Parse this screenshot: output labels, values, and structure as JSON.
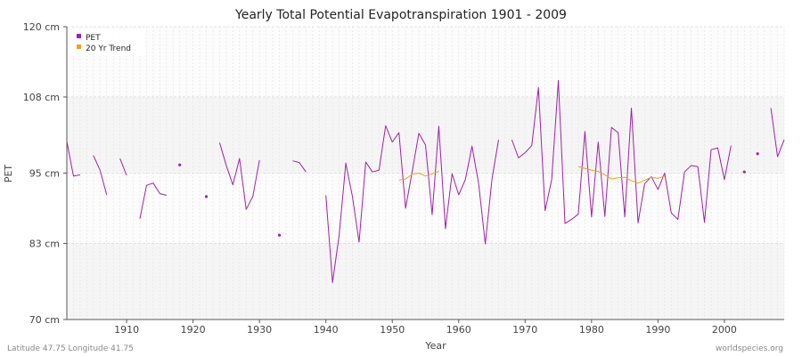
{
  "chart_data": {
    "type": "line",
    "title": "Yearly Total Potential Evapotranspiration 1901 - 2009",
    "xlabel": "Year",
    "ylabel": "PET",
    "xlim": [
      1901,
      2009
    ],
    "ylim": [
      70,
      120
    ],
    "yticks": [
      {
        "value": 70,
        "label": "70 cm"
      },
      {
        "value": 83,
        "label": "83 cm"
      },
      {
        "value": 95,
        "label": "95 cm"
      },
      {
        "value": 108,
        "label": "108 cm"
      },
      {
        "value": 120,
        "label": "120 cm"
      }
    ],
    "xticks": [
      {
        "value": 1910,
        "label": "1910"
      },
      {
        "value": 1920,
        "label": "1920"
      },
      {
        "value": 1930,
        "label": "1930"
      },
      {
        "value": 1940,
        "label": "1940"
      },
      {
        "value": 1950,
        "label": "1950"
      },
      {
        "value": 1960,
        "label": "1960"
      },
      {
        "value": 1970,
        "label": "1970"
      },
      {
        "value": 1980,
        "label": "1980"
      },
      {
        "value": 1990,
        "label": "1990"
      },
      {
        "value": 2000,
        "label": "2000"
      }
    ],
    "legend_position": "top-left",
    "series": [
      {
        "name": "PET",
        "color": "#a020a8",
        "points": [
          [
            1901,
            100.4
          ],
          [
            1902,
            94.5
          ],
          [
            1903,
            94.7
          ],
          [
            1905,
            98.0
          ],
          [
            1906,
            95.5
          ],
          [
            1907,
            91.3
          ],
          [
            1909,
            97.5
          ],
          [
            1910,
            94.6
          ],
          [
            1912,
            87.2
          ],
          [
            1913,
            92.9
          ],
          [
            1914,
            93.3
          ],
          [
            1915,
            91.5
          ],
          [
            1916,
            91.2
          ],
          [
            1918,
            96.4
          ],
          [
            1922,
            91.0
          ],
          [
            1924,
            100.2
          ],
          [
            1925,
            96.3
          ],
          [
            1926,
            93.0
          ],
          [
            1927,
            97.5
          ],
          [
            1928,
            88.8
          ],
          [
            1929,
            91.0
          ],
          [
            1930,
            97.2
          ],
          [
            1933,
            84.4
          ],
          [
            1935,
            97.1
          ],
          [
            1936,
            96.8
          ],
          [
            1937,
            95.2
          ],
          [
            1940,
            91.2
          ],
          [
            1941,
            76.3
          ],
          [
            1942,
            84.4
          ],
          [
            1943,
            96.7
          ],
          [
            1944,
            91.0
          ],
          [
            1945,
            83.2
          ],
          [
            1946,
            96.9
          ],
          [
            1947,
            95.2
          ],
          [
            1948,
            95.5
          ],
          [
            1949,
            103.1
          ],
          [
            1950,
            100.3
          ],
          [
            1951,
            101.9
          ],
          [
            1952,
            89.0
          ],
          [
            1953,
            95.3
          ],
          [
            1954,
            101.8
          ],
          [
            1955,
            99.8
          ],
          [
            1956,
            87.9
          ],
          [
            1957,
            103.0
          ],
          [
            1958,
            85.5
          ],
          [
            1959,
            94.9
          ],
          [
            1960,
            91.3
          ],
          [
            1961,
            93.9
          ],
          [
            1962,
            99.6
          ],
          [
            1963,
            93.2
          ],
          [
            1964,
            82.9
          ],
          [
            1965,
            93.9
          ],
          [
            1966,
            100.7
          ],
          [
            1968,
            100.7
          ],
          [
            1969,
            97.6
          ],
          [
            1970,
            98.5
          ],
          [
            1971,
            99.7
          ],
          [
            1972,
            109.6
          ],
          [
            1973,
            88.6
          ],
          [
            1974,
            93.9
          ],
          [
            1975,
            110.8
          ],
          [
            1976,
            86.4
          ],
          [
            1977,
            87.1
          ],
          [
            1978,
            88.0
          ],
          [
            1979,
            102.1
          ],
          [
            1980,
            87.5
          ],
          [
            1981,
            100.3
          ],
          [
            1982,
            87.6
          ],
          [
            1983,
            102.8
          ],
          [
            1984,
            101.9
          ],
          [
            1985,
            87.5
          ],
          [
            1986,
            106.1
          ],
          [
            1987,
            86.5
          ],
          [
            1988,
            93.2
          ],
          [
            1989,
            94.4
          ],
          [
            1990,
            92.2
          ],
          [
            1991,
            95.0
          ],
          [
            1992,
            88.2
          ],
          [
            1993,
            87.1
          ],
          [
            1994,
            95.2
          ],
          [
            1995,
            96.3
          ],
          [
            1996,
            96.1
          ],
          [
            1997,
            86.6
          ],
          [
            1998,
            99.0
          ],
          [
            1999,
            99.3
          ],
          [
            2000,
            93.9
          ],
          [
            2001,
            99.7
          ],
          [
            2003,
            95.2
          ],
          [
            2005,
            98.3
          ],
          [
            2007,
            106.1
          ],
          [
            2008,
            97.8
          ],
          [
            2009,
            100.7
          ]
        ]
      },
      {
        "name": "20 Yr Trend",
        "color": "#f0a020",
        "points": [
          [
            1951,
            93.8
          ],
          [
            1952,
            94.0
          ],
          [
            1953,
            94.8
          ],
          [
            1954,
            95.0
          ],
          [
            1955,
            94.5
          ],
          [
            1956,
            94.9
          ],
          [
            1957,
            95.3
          ],
          [
            1978,
            96.1
          ],
          [
            1979,
            95.8
          ],
          [
            1980,
            95.5
          ],
          [
            1981,
            95.3
          ],
          [
            1982,
            94.7
          ],
          [
            1983,
            94.0
          ],
          [
            1984,
            94.2
          ],
          [
            1985,
            94.3
          ],
          [
            1986,
            93.7
          ],
          [
            1987,
            93.3
          ],
          [
            1988,
            93.8
          ],
          [
            1989,
            94.3
          ],
          [
            1990,
            94.1
          ],
          [
            1991,
            94.5
          ]
        ]
      }
    ]
  },
  "footer": {
    "location": "Latitude 47.75 Longitude 41.75",
    "source": "worldspecies.org"
  }
}
